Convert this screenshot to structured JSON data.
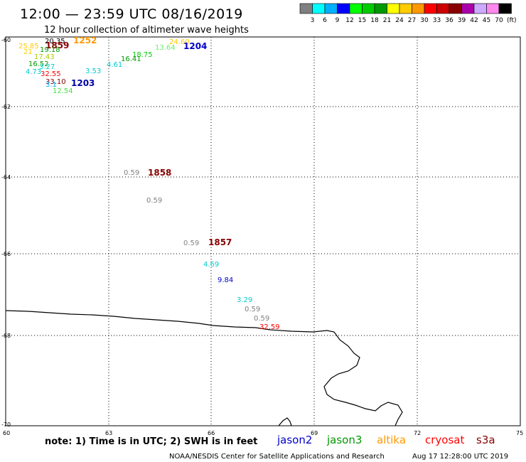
{
  "header": {
    "title": "12:00 — 23:59 UTC 08/16/2019",
    "subtitle": "12 hour collection of altimeter wave heights"
  },
  "legend": {
    "unit": "(ft)",
    "entries": [
      {
        "value": "3",
        "color": "#808080"
      },
      {
        "value": "6",
        "color": "#00ffff"
      },
      {
        "value": "9",
        "color": "#00b0ff"
      },
      {
        "value": "12",
        "color": "#0000ff"
      },
      {
        "value": "15",
        "color": "#00ff00"
      },
      {
        "value": "18",
        "color": "#00cc00"
      },
      {
        "value": "21",
        "color": "#009900"
      },
      {
        "value": "24",
        "color": "#ffff00"
      },
      {
        "value": "27",
        "color": "#ffcc00"
      },
      {
        "value": "30",
        "color": "#ff9900"
      },
      {
        "value": "33",
        "color": "#ff0000"
      },
      {
        "value": "36",
        "color": "#cc0000"
      },
      {
        "value": "39",
        "color": "#880000"
      },
      {
        "value": "42",
        "color": "#aa00aa"
      },
      {
        "value": "45",
        "color": "#ccaaff"
      },
      {
        "value": "70",
        "color": "#ff88ee"
      },
      {
        "value": "",
        "color": "#000000"
      }
    ]
  },
  "map": {
    "lon_range": [
      60,
      75
    ],
    "lat_range": [
      -60,
      -70
    ],
    "lat_labels": [
      "-60",
      "-62",
      "-64",
      "-66",
      "-68",
      "-70"
    ],
    "lon_labels": [
      "60",
      "63",
      "66",
      "69",
      "72",
      "75"
    ],
    "observations": [
      {
        "text": "20.35",
        "color": "#000000"
      },
      {
        "text": "25.85",
        "color": "#ffcc00"
      },
      {
        "text": "1859",
        "color": "#880000",
        "time": true
      },
      {
        "text": "1252",
        "color": "#ff9900",
        "time": true
      },
      {
        "text": "24.60",
        "color": "#ffcc00"
      },
      {
        "text": "21",
        "color": "#ffcc00"
      },
      {
        "text": "19.18",
        "color": "#009900"
      },
      {
        "text": "13.64",
        "color": "#66ee66"
      },
      {
        "text": "1204",
        "color": "#0000cc",
        "time": true
      },
      {
        "text": "17.43",
        "color": "#aacc00"
      },
      {
        "text": "18.75",
        "color": "#00cc00"
      },
      {
        "text": "16.41",
        "color": "#009900"
      },
      {
        "text": "16.52",
        "color": "#009900"
      },
      {
        "text": "4.61",
        "color": "#00cccc"
      },
      {
        "text": "3.27",
        "color": "#00cccc"
      },
      {
        "text": "4.73",
        "color": "#00cccc"
      },
      {
        "text": "32.55",
        "color": "#ff0000"
      },
      {
        "text": "3.53",
        "color": "#00cccc"
      },
      {
        "text": "33.10",
        "color": "#880000"
      },
      {
        "text": "1203",
        "color": "#0000aa",
        "time": true
      },
      {
        "text": "3.1",
        "color": "#00aaff"
      },
      {
        "text": "12.54",
        "color": "#44dd44"
      },
      {
        "text": "0.59",
        "color": "#808080"
      },
      {
        "text": "1858",
        "color": "#880000",
        "time": true
      },
      {
        "text": "0.59",
        "color": "#808080"
      },
      {
        "text": "0.59",
        "color": "#808080"
      },
      {
        "text": "1857",
        "color": "#880000",
        "time": true
      },
      {
        "text": "4.69",
        "color": "#00cccc"
      },
      {
        "text": "9.84",
        "color": "#0000cc"
      },
      {
        "text": "3.29",
        "color": "#00cccc"
      },
      {
        "text": "0.59",
        "color": "#808080"
      },
      {
        "text": "0.59",
        "color": "#808080"
      },
      {
        "text": "32.59",
        "color": "#ff0000"
      }
    ]
  },
  "footer": {
    "note": "note: 1) Time is in UTC; 2) SWH is in feet",
    "satellites": [
      {
        "name": "jason2",
        "color": "#0000cc"
      },
      {
        "name": "jason3",
        "color": "#009900"
      },
      {
        "name": "altika",
        "color": "#ff9900"
      },
      {
        "name": "cryosat",
        "color": "#ff0000"
      },
      {
        "name": "s3a",
        "color": "#880000"
      }
    ],
    "credit": "NOAA/NESDIS Center for Satellite Applications and Research",
    "timestamp": "Aug 17 12:28:00 UTC 2019"
  }
}
